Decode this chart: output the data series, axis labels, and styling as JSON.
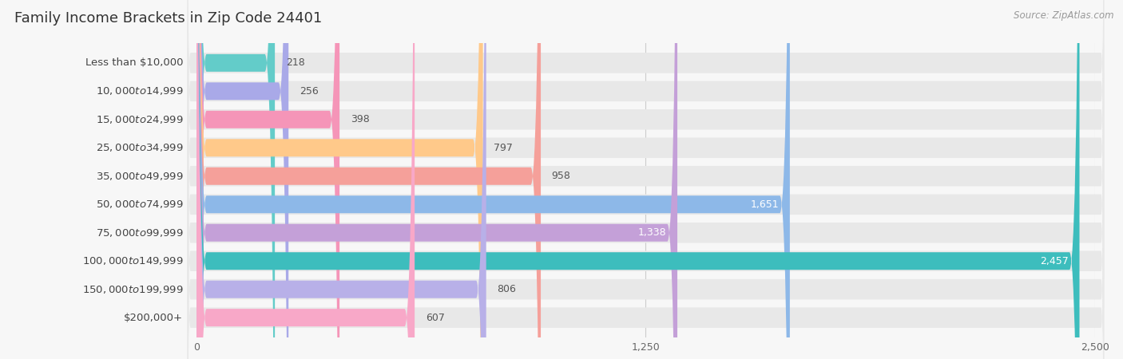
{
  "title": "Family Income Brackets in Zip Code 24401",
  "source": "Source: ZipAtlas.com",
  "categories": [
    "Less than $10,000",
    "$10,000 to $14,999",
    "$15,000 to $24,999",
    "$25,000 to $34,999",
    "$35,000 to $49,999",
    "$50,000 to $74,999",
    "$75,000 to $99,999",
    "$100,000 to $149,999",
    "$150,000 to $199,999",
    "$200,000+"
  ],
  "values": [
    218,
    256,
    398,
    797,
    958,
    1651,
    1338,
    2457,
    806,
    607
  ],
  "bar_colors": [
    "#63ccc9",
    "#a9a9e8",
    "#f595b8",
    "#ffc98a",
    "#f5a09a",
    "#8db8e8",
    "#c4a0d8",
    "#3dbdbd",
    "#b8b0e8",
    "#f8a8c8"
  ],
  "xlim": [
    0,
    2500
  ],
  "xticks": [
    0,
    1250,
    2500
  ],
  "background_color": "#f7f7f7",
  "row_bg_color": "#e8e8e8",
  "title_fontsize": 13,
  "label_fontsize": 9.5,
  "value_fontsize": 9,
  "source_fontsize": 8.5,
  "value_threshold": 1300
}
